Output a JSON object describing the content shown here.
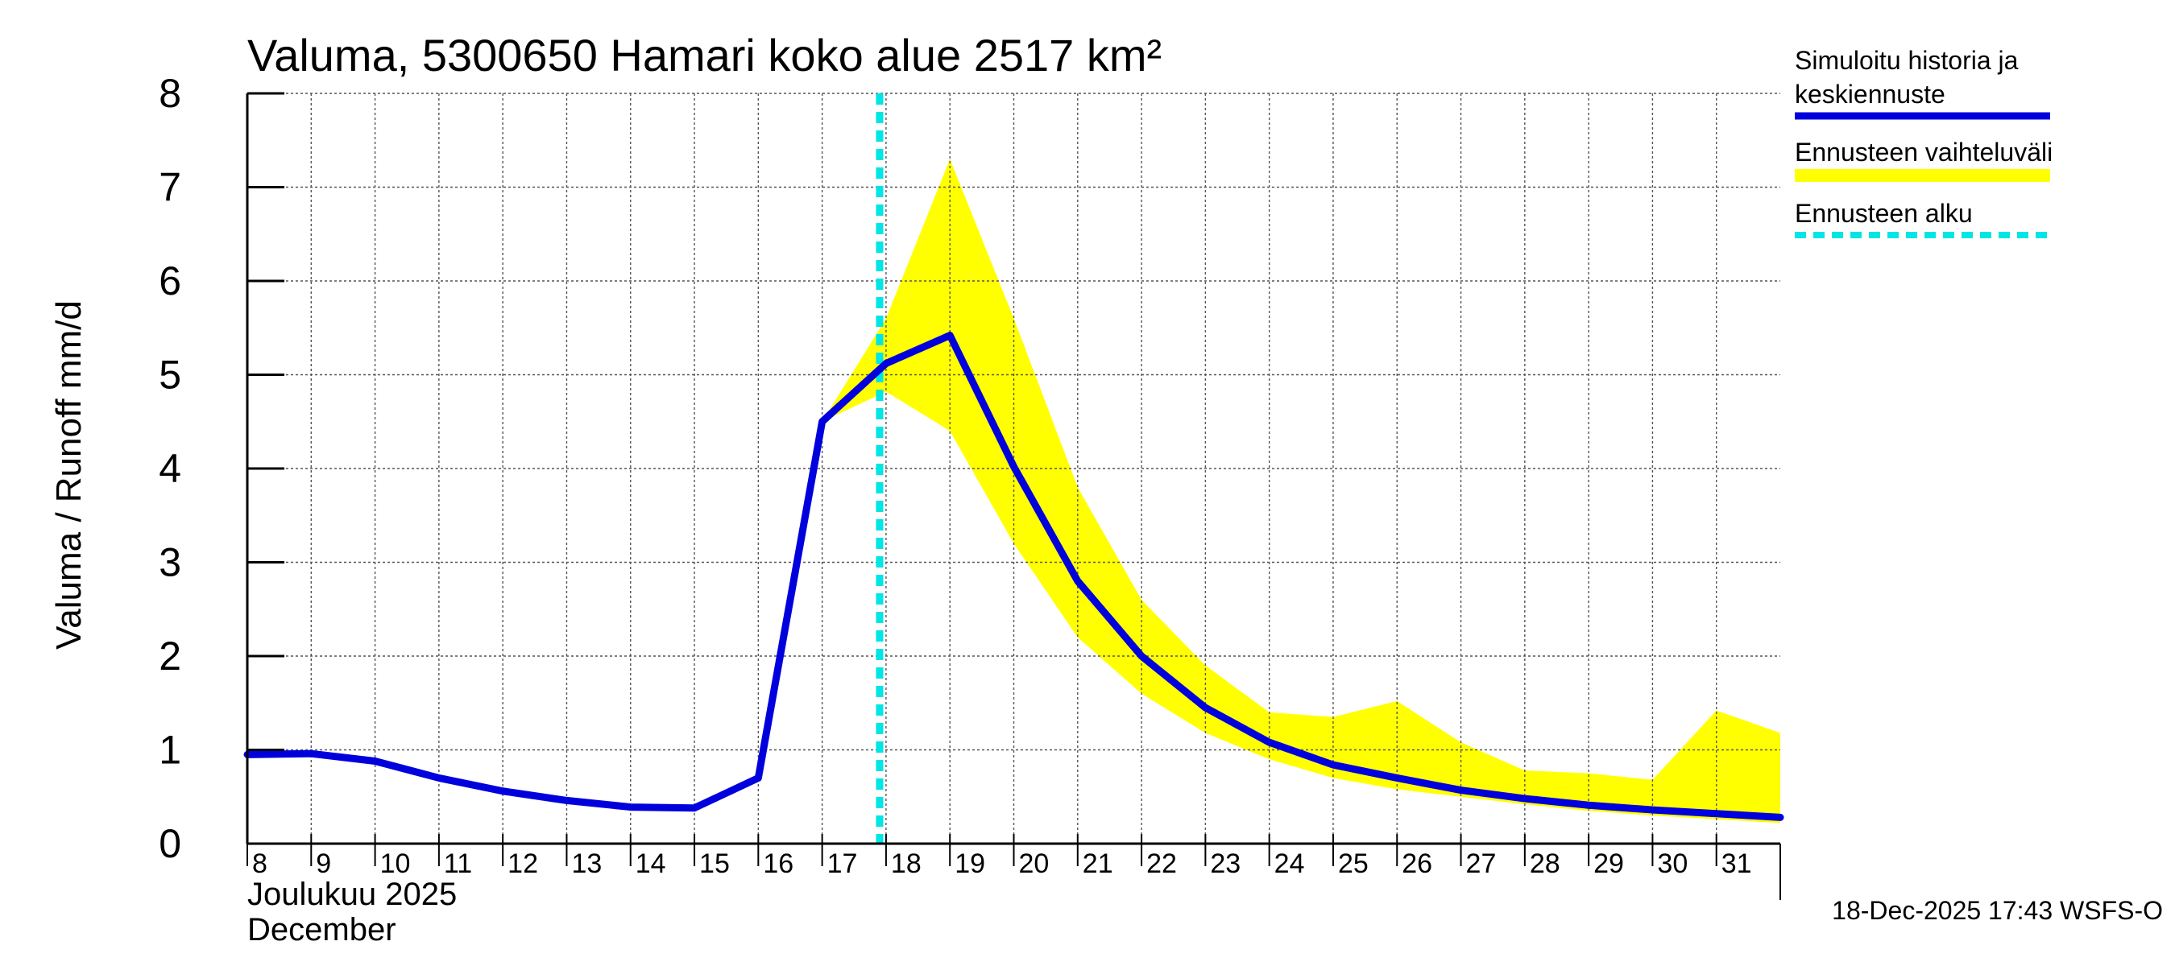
{
  "chart_data": {
    "type": "line",
    "title": "Valuma, 5300650 Hamari koko alue 2517 km²",
    "ylabel": "Valuma / Runoff    mm/d",
    "month_label_fi": "Joulukuu  2025",
    "month_label_en": "December",
    "ylim": [
      0,
      8
    ],
    "yticks": [
      0,
      1,
      2,
      3,
      4,
      5,
      6,
      7,
      8
    ],
    "xlim": [
      8,
      32
    ],
    "xticks": [
      "8",
      "9",
      "10",
      "11",
      "12",
      "13",
      "14",
      "15",
      "16",
      "17",
      "18",
      "19",
      "20",
      "21",
      "22",
      "23",
      "24",
      "25",
      "26",
      "27",
      "28",
      "29",
      "30",
      "31"
    ],
    "forecast_start_day": 17.9,
    "series": [
      {
        "name": "Simuloitu historia ja keskiennuste",
        "color": "#0000dd",
        "x": [
          8,
          9,
          10,
          11,
          12,
          13,
          14,
          15,
          16,
          17,
          18,
          19,
          20,
          21,
          22,
          23,
          24,
          25,
          26,
          27,
          28,
          29,
          30,
          31,
          32
        ],
        "values": [
          0.95,
          0.96,
          0.88,
          0.7,
          0.56,
          0.46,
          0.39,
          0.38,
          0.7,
          4.5,
          5.12,
          5.42,
          4.02,
          2.8,
          2.0,
          1.45,
          1.08,
          0.84,
          0.7,
          0.57,
          0.48,
          0.41,
          0.36,
          0.32,
          0.28
        ]
      }
    ],
    "band": {
      "name": "Ennusteen vaihteluväli",
      "color": "#ffff00",
      "x": [
        17,
        18,
        19,
        20,
        21,
        22,
        23,
        24,
        25,
        26,
        27,
        28,
        29,
        30,
        31,
        32
      ],
      "upper": [
        4.5,
        5.6,
        7.3,
        5.6,
        3.8,
        2.6,
        1.9,
        1.4,
        1.35,
        1.52,
        1.08,
        0.78,
        0.75,
        0.68,
        1.42,
        1.18
      ],
      "lower": [
        4.5,
        4.82,
        4.4,
        3.2,
        2.2,
        1.6,
        1.18,
        0.9,
        0.7,
        0.58,
        0.5,
        0.42,
        0.35,
        0.3,
        0.26,
        0.22
      ]
    },
    "legend": {
      "position": "top-right",
      "entries": [
        {
          "label_line1": "Simuloitu historia ja",
          "label_line2": "keskiennuste",
          "color": "#0000dd",
          "style": "solid"
        },
        {
          "label_line1": "Ennusteen vaihteluväli",
          "label_line2": "",
          "color": "#ffff00",
          "style": "band"
        },
        {
          "label_line1": "Ennusteen alku",
          "label_line2": "",
          "color": "#00e5e5",
          "style": "dashed"
        }
      ]
    },
    "footer": "18-Dec-2025 17:43 WSFS-O"
  }
}
